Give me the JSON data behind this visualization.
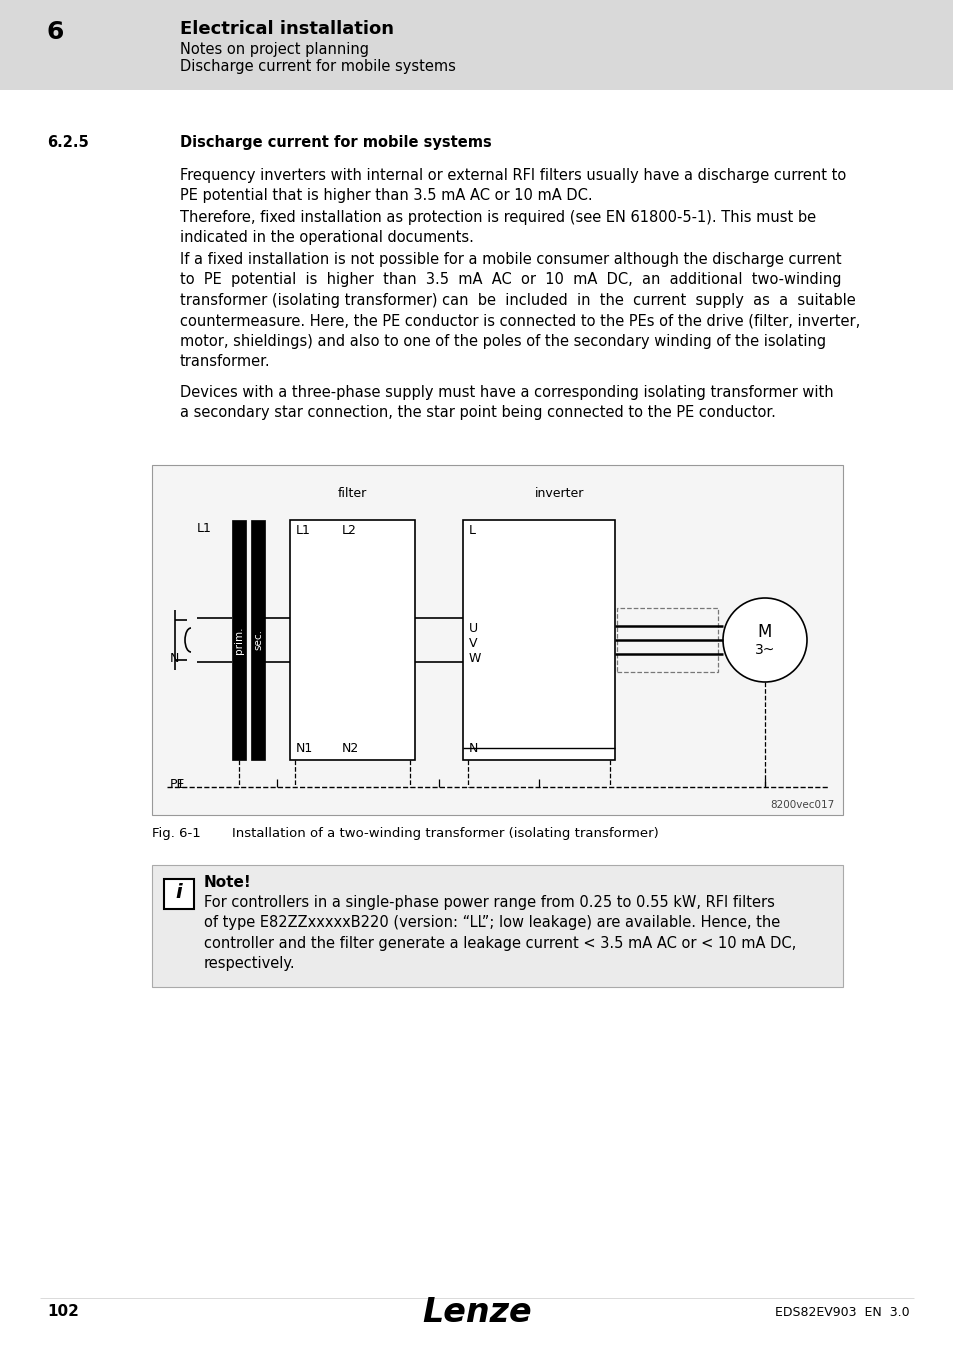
{
  "page_bg": "#ffffff",
  "header_bg": "#d9d9d9",
  "header_num": "6",
  "header_title": "Electrical installation",
  "header_sub1": "Notes on project planning",
  "header_sub2": "Discharge current for mobile systems",
  "section_num": "6.2.5",
  "section_title": "Discharge current for mobile systems",
  "para1": "Frequency inverters with internal or external RFI filters usually have a discharge current to\nPE potential that is higher than 3.5 mA AC or 10 mA DC.",
  "para2": "Therefore, fixed installation as protection is required (see EN 61800-5-1). This must be\nindicated in the operational documents.",
  "para3": "If a fixed installation is not possible for a mobile consumer although the discharge current\nto  PE  potential  is  higher  than  3.5  mA  AC  or  10  mA  DC,  an  additional  two-winding\ntransformer (isolating transformer) can  be  included  in  the  current  supply  as  a  suitable\ncountermeasure. Here, the PE conductor is connected to the PEs of the drive (filter, inverter,\nmotor, shieldings) and also to one of the poles of the secondary winding of the isolating\ntransformer.",
  "para4": "Devices with a three-phase supply must have a corresponding isolating transformer with\na secondary star connection, the star point being connected to the PE conductor.",
  "fig_caption_label": "Fig. 6-1",
  "fig_caption_text": "Installation of a two-winding transformer (isolating transformer)",
  "note_title": "Note!",
  "note_text": "For controllers in a single-phase power range from 0.25 to 0.55 kW, RFI filters\nof type E82ZZxxxxxB220 (version: “LL”; low leakage) are available. Hence, the\ncontroller and the filter generate a leakage current < 3.5 mA AC or < 10 mA DC,\nrespectively.",
  "footer_page": "102",
  "footer_center": "Lenze",
  "footer_right": "EDS82EV903  EN  3.0",
  "diagram_code": "8200vec017",
  "label_filter": "filter",
  "label_inverter": "inverter",
  "label_prim": "prim.",
  "label_sec": "sec.",
  "label_L1_src": "L1",
  "label_N_src": "N",
  "label_PE": "PE",
  "label_filt_L1": "L1",
  "label_filt_L2": "L2",
  "label_filt_N1": "N1",
  "label_filt_N2": "N2",
  "label_inv_L": "L",
  "label_inv_N": "N",
  "label_inv_U": "U",
  "label_inv_V": "V",
  "label_inv_W": "W",
  "label_motor": "M",
  "label_motor2": "3~"
}
